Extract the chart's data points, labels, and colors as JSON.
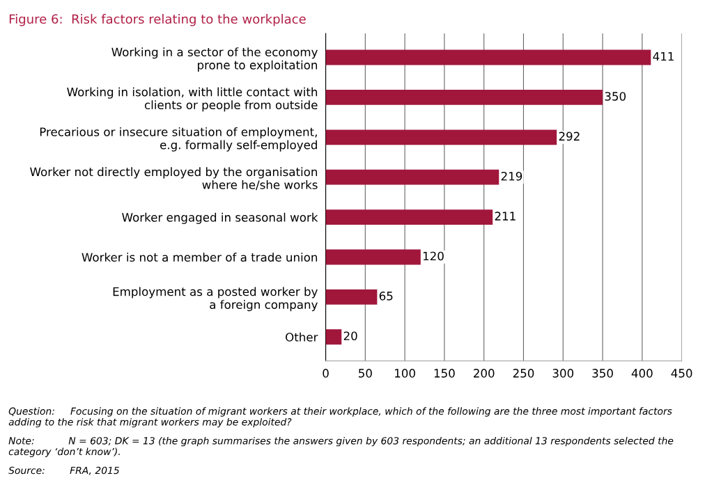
{
  "chart_data": {
    "type": "bar",
    "orientation": "horizontal",
    "title": "Figure 6:  Risk factors relating to the workplace",
    "categories": [
      "Working in a sector of the economy\nprone to exploitation",
      "Working in isolation, with little contact with\nclients or people from outside",
      "Precarious or insecure situation of employment,\ne.g. formally self-employed",
      "Worker not directly employed by the organisation\nwhere he/she works",
      "Worker engaged in seasonal work",
      "Worker is not a member of a trade union",
      "Employment as a posted worker by\na foreign company",
      "Other"
    ],
    "values": [
      411,
      350,
      292,
      219,
      211,
      120,
      65,
      20
    ],
    "color": "#a1173c",
    "data_labels": true,
    "xlim": [
      0,
      450
    ],
    "xticks": [
      0,
      50,
      100,
      150,
      200,
      250,
      300,
      350,
      400,
      450
    ],
    "grid": "x",
    "annotations": [
      "Question:     Focusing on the situation of migrant workers at their workplace, which of the following are the three most important factors adding to the risk that migrant workers may be exploited?",
      "Note:           N = 603; DK = 13 (the graph summarises the answers given by 603 respondents; an additional 13 respondents selected the category ‘don’t know’).",
      "Source:        FRA, 2015"
    ]
  }
}
